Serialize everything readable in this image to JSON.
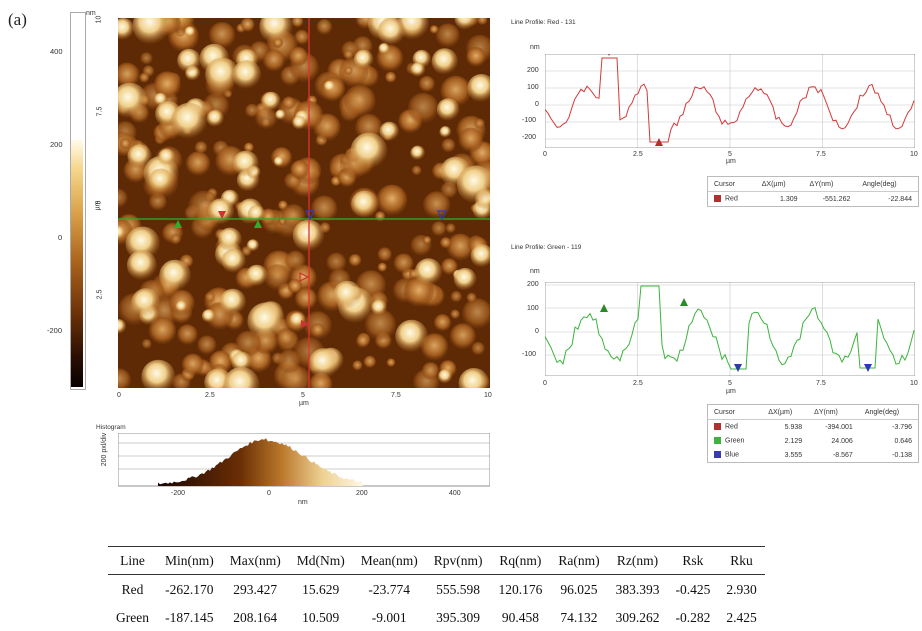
{
  "panel_label": "(a)",
  "colorbar": {
    "unit": "nm",
    "ticks": [
      "400",
      "200",
      "0",
      "-200"
    ]
  },
  "afm_image": {
    "x_ticks": [
      "0",
      "2.5",
      "5",
      "7.5",
      "10"
    ],
    "y_ticks": [
      "10",
      "7.5",
      "5",
      "2.5"
    ],
    "x_label": "µm",
    "y_label": "µm"
  },
  "histogram": {
    "title": "Histogram",
    "y_label": "200 pxl/div",
    "x_ticks": [
      "-200",
      "0",
      "200",
      "400"
    ],
    "x_label": "nm"
  },
  "profile_red": {
    "title": "Line Profile: Red - 131",
    "unit": "nm",
    "y_ticks": [
      "200",
      "100",
      "0",
      "-100",
      "-200"
    ],
    "x_ticks": [
      "0",
      "2.5",
      "5",
      "7.5",
      "10"
    ],
    "x_label": "µm",
    "color": "#d43a3a",
    "legend_headers": [
      "Cursor",
      "ΔX(µm)",
      "ΔY(nm)",
      "Angle(deg)"
    ],
    "legend_rows": [
      {
        "name": "Red",
        "color": "#b03030",
        "dx": "1.309",
        "dy": "-551.262",
        "angle": "-22.844"
      }
    ]
  },
  "profile_green": {
    "title": "Line Profile: Green - 119",
    "unit": "nm",
    "y_ticks": [
      "200",
      "100",
      "0",
      "-100"
    ],
    "x_ticks": [
      "0",
      "2.5",
      "5",
      "7.5",
      "10"
    ],
    "x_label": "µm",
    "color": "#3db33d",
    "legend_headers": [
      "Cursor",
      "ΔX(µm)",
      "ΔY(nm)",
      "Angle(deg)"
    ],
    "legend_rows": [
      {
        "name": "Red",
        "color": "#b03030",
        "dx": "5.938",
        "dy": "-394.001",
        "angle": "-3.796"
      },
      {
        "name": "Green",
        "color": "#3db33d",
        "dx": "2.129",
        "dy": "24.006",
        "angle": "0.646"
      },
      {
        "name": "Blue",
        "color": "#3a3ab0",
        "dx": "3.555",
        "dy": "-8.567",
        "angle": "-0.138"
      }
    ]
  },
  "stats_table": {
    "headers": [
      "Line",
      "Min(nm)",
      "Max(nm)",
      "Md(Nm)",
      "Mean(nm)",
      "Rpv(nm)",
      "Rq(nm)",
      "Ra(nm)",
      "Rz(nm)",
      "Rsk",
      "Rku"
    ],
    "rows": [
      [
        "Red",
        "-262.170",
        "293.427",
        "15.629",
        "-23.774",
        "555.598",
        "120.176",
        "96.025",
        "383.393",
        "-0.425",
        "2.930"
      ],
      [
        "Green",
        "-187.145",
        "208.164",
        "10.509",
        "-9.001",
        "395.309",
        "90.458",
        "74.132",
        "309.262",
        "-0.282",
        "2.425"
      ]
    ]
  }
}
